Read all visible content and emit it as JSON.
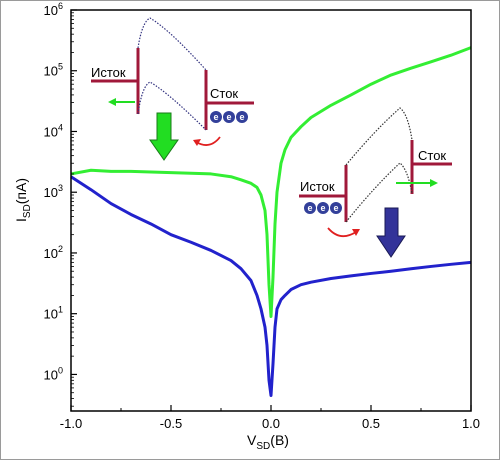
{
  "chart_data": {
    "type": "line",
    "xlabel": "V",
    "xlabel_sub": "SD",
    "xlabel_unit": "(В)",
    "ylabel": "I",
    "ylabel_sub": "SD",
    "ylabel_unit": "(пА)",
    "y_scale": "log",
    "xlim": [
      -1.0,
      1.0
    ],
    "ylim": [
      0.25,
      1000000
    ],
    "x_ticks": [
      -1.0,
      -0.5,
      0.0,
      0.5,
      1.0
    ],
    "x_tick_labels": [
      "-1.0",
      "-0.5",
      "0.0",
      "0.5",
      "1.0"
    ],
    "y_ticks": [
      1,
      10,
      100,
      1000,
      10000,
      100000,
      1000000
    ],
    "y_tick_base": "10",
    "y_tick_exponents": [
      "0",
      "1",
      "2",
      "3",
      "4",
      "5",
      "6"
    ],
    "grid": false,
    "series": [
      {
        "color": "#33ee33",
        "x": [
          -1.0,
          -0.9,
          -0.8,
          -0.7,
          -0.6,
          -0.5,
          -0.4,
          -0.3,
          -0.2,
          -0.15,
          -0.1,
          -0.07,
          -0.05,
          -0.03,
          -0.02,
          -0.01,
          0.0,
          0.01,
          0.02,
          0.03,
          0.05,
          0.07,
          0.1,
          0.15,
          0.2,
          0.3,
          0.4,
          0.5,
          0.6,
          0.7,
          0.8,
          0.9,
          1.0
        ],
        "y": [
          2000,
          2300,
          2200,
          2200,
          2150,
          2100,
          2050,
          2000,
          1800,
          1600,
          1400,
          1200,
          900,
          500,
          200,
          30,
          9,
          40,
          300,
          1000,
          3000,
          5000,
          8000,
          12000,
          17000,
          27000,
          40000,
          60000,
          85000,
          110000,
          140000,
          180000,
          240000
        ]
      },
      {
        "color": "#2222cc",
        "x": [
          -1.0,
          -0.9,
          -0.8,
          -0.7,
          -0.6,
          -0.5,
          -0.4,
          -0.3,
          -0.2,
          -0.15,
          -0.1,
          -0.07,
          -0.05,
          -0.03,
          -0.02,
          -0.01,
          0.0,
          0.01,
          0.02,
          0.03,
          0.05,
          0.07,
          0.1,
          0.15,
          0.2,
          0.3,
          0.4,
          0.5,
          0.6,
          0.7,
          0.8,
          0.9,
          1.0
        ],
        "y": [
          1800,
          1100,
          650,
          430,
          300,
          200,
          150,
          110,
          75,
          55,
          35,
          20,
          12,
          6,
          3,
          0.8,
          0.45,
          1.5,
          6,
          12,
          17,
          20,
          25,
          30,
          33,
          38,
          42,
          46,
          50,
          55,
          60,
          65,
          70
        ]
      }
    ],
    "annotations": {
      "left_inset": {
        "source_label": "Исток",
        "drain_label": "Сток",
        "electron_label": "e",
        "arrow_color": "#22dd22"
      },
      "right_inset": {
        "source_label": "Исток",
        "drain_label": "Сток",
        "electron_label": "e",
        "arrow_color": "#333399"
      }
    }
  },
  "colors": {
    "green": "#33ee33",
    "blue": "#2222cc",
    "barrier": "#a0183a",
    "electron": "#33409a",
    "red_arrow": "#e02020"
  }
}
